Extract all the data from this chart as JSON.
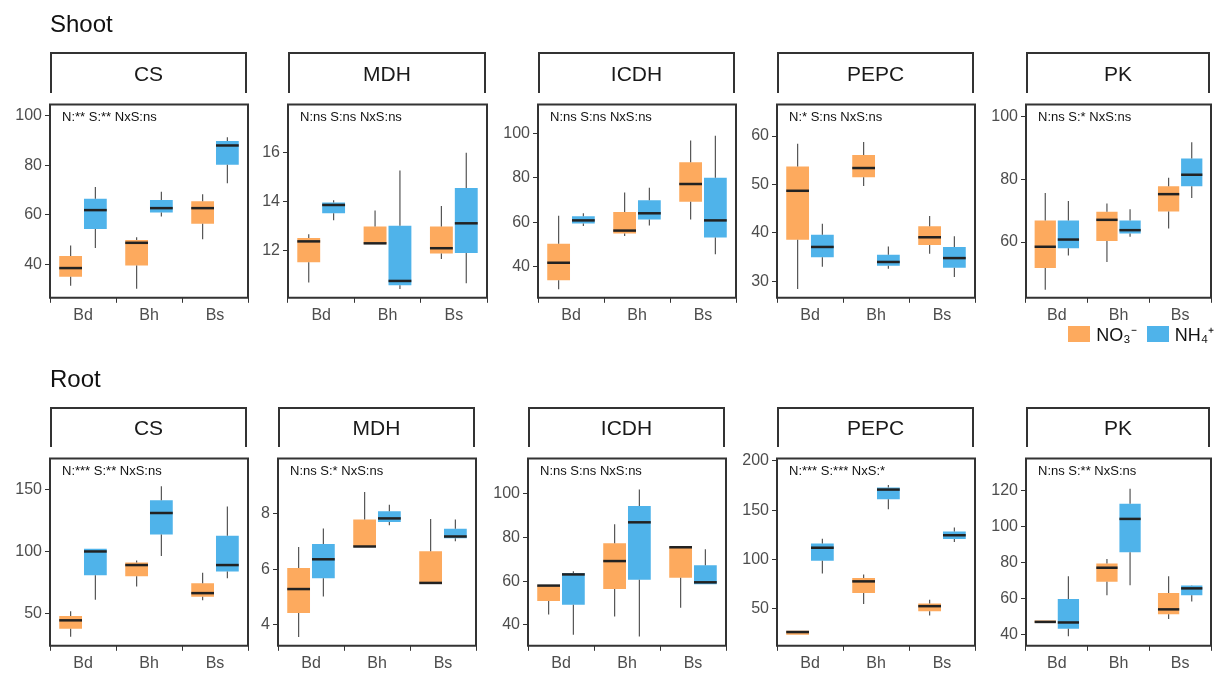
{
  "chart_data": [
    {
      "type": "box",
      "subtitle": "Shoot",
      "title": "CS",
      "annotations": [
        "N:** S:** NxS:ns"
      ],
      "categories": [
        "Bd",
        "Bh",
        "Bs"
      ],
      "ylim": [
        26.5,
        104.5
      ],
      "yticks": [
        40,
        60,
        80,
        100
      ],
      "series": [
        {
          "color": "#fdaa5e",
          "boxes": [
            {
              "low": 31.4,
              "q1": 35,
              "median": 38.5,
              "q3": 43.4,
              "high": 47.6
            },
            {
              "low": 30.2,
              "q1": 39.5,
              "median": 48.7,
              "q3": 49.8,
              "high": 50.9
            },
            {
              "low": 50.1,
              "q1": 56.4,
              "median": 62.7,
              "q3": 65.5,
              "high": 68.3
            }
          ]
        },
        {
          "color": "#4fb3ea",
          "boxes": [
            {
              "low": 46.6,
              "q1": 54.3,
              "median": 61.9,
              "q3": 66.5,
              "high": 71.2
            },
            {
              "low": 59.3,
              "q1": 60.9,
              "median": 62.7,
              "q3": 66,
              "high": 69.3
            },
            {
              "low": 72.7,
              "q1": 80.2,
              "median": 88,
              "q3": 89.8,
              "high": 91.3
            }
          ]
        }
      ]
    },
    {
      "type": "box",
      "title": "MDH",
      "annotations": [
        "N:ns S:ns NxS:ns"
      ],
      "categories": [
        "Bd",
        "Bh",
        "Bs"
      ],
      "ylim": [
        10.07,
        17.98
      ],
      "yticks": [
        12,
        14,
        16
      ],
      "series": [
        {
          "color": "#fdaa5e",
          "boxes": [
            {
              "low": 10.7,
              "q1": 11.53,
              "median": 12.38,
              "q3": 12.52,
              "high": 12.67
            },
            {
              "low": 12.28,
              "q1": 12.28,
              "median": 12.3,
              "q3": 12.99,
              "high": 13.64
            },
            {
              "low": 11.66,
              "q1": 11.88,
              "median": 12.1,
              "q3": 12.99,
              "high": 13.83
            }
          ]
        },
        {
          "color": "#4fb3ea",
          "boxes": [
            {
              "low": 13.24,
              "q1": 13.53,
              "median": 13.87,
              "q3": 13.97,
              "high": 14.06
            },
            {
              "low": 10.43,
              "q1": 10.58,
              "median": 10.76,
              "q3": 13.02,
              "high": 15.28
            },
            {
              "low": 10.67,
              "q1": 11.9,
              "median": 13.12,
              "q3": 14.57,
              "high": 16.01
            }
          ]
        }
      ]
    },
    {
      "type": "box",
      "title": "ICDH",
      "annotations": [
        "N:ns S:ns NxS:ns"
      ],
      "categories": [
        "Bd",
        "Bh",
        "Bs"
      ],
      "ylim": [
        25.9,
        113
      ],
      "yticks": [
        40,
        60,
        80,
        100
      ],
      "series": [
        {
          "color": "#fdaa5e",
          "boxes": [
            {
              "low": 29.8,
              "q1": 33.8,
              "median": 41.7,
              "q3": 50.3,
              "high": 62.9
            },
            {
              "low": 53.8,
              "q1": 54.9,
              "median": 56.2,
              "q3": 64.6,
              "high": 73.4
            },
            {
              "low": 61.2,
              "q1": 69.2,
              "median": 77.2,
              "q3": 87,
              "high": 96.8
            }
          ]
        },
        {
          "color": "#4fb3ea",
          "boxes": [
            {
              "low": 58.3,
              "q1": 59.4,
              "median": 60.8,
              "q3": 62.7,
              "high": 64
            },
            {
              "low": 58.5,
              "q1": 61.2,
              "median": 64,
              "q3": 69.9,
              "high": 75.5
            },
            {
              "low": 45.5,
              "q1": 53.1,
              "median": 60.8,
              "q3": 80,
              "high": 99
            }
          ]
        }
      ]
    },
    {
      "type": "box",
      "title": "PEPC",
      "annotations": [
        "N:* S:ns NxS:ns"
      ],
      "categories": [
        "Bd",
        "Bh",
        "Bs"
      ],
      "ylim": [
        26.6,
        66.5
      ],
      "yticks": [
        30,
        40,
        50,
        60
      ],
      "series": [
        {
          "color": "#fdaa5e",
          "boxes": [
            {
              "low": 28.4,
              "q1": 38.6,
              "median": 48.7,
              "q3": 53.7,
              "high": 58.4
            },
            {
              "low": 49.7,
              "q1": 51.5,
              "median": 53.4,
              "q3": 56.1,
              "high": 58.8
            },
            {
              "low": 35.7,
              "q1": 37.5,
              "median": 39.1,
              "q3": 41.4,
              "high": 43.5
            }
          ]
        },
        {
          "color": "#4fb3ea",
          "boxes": [
            {
              "low": 33,
              "q1": 35,
              "median": 37.1,
              "q3": 39.6,
              "high": 41.9
            },
            {
              "low": 32.6,
              "q1": 33.2,
              "median": 34,
              "q3": 35.5,
              "high": 37.2
            },
            {
              "low": 30.9,
              "q1": 32.8,
              "median": 34.8,
              "q3": 37.1,
              "high": 39.3
            }
          ]
        }
      ]
    },
    {
      "type": "box",
      "title": "PK",
      "annotations": [
        "N:ns S:* NxS:ns"
      ],
      "categories": [
        "Bd",
        "Bh",
        "Bs"
      ],
      "ylim": [
        42.2,
        103.9
      ],
      "yticks": [
        60,
        80,
        100
      ],
      "series": [
        {
          "color": "#fdaa5e",
          "boxes": [
            {
              "low": 44.8,
              "q1": 51.7,
              "median": 58.5,
              "q3": 66.9,
              "high": 75.7
            },
            {
              "low": 53.6,
              "q1": 60.3,
              "median": 67.1,
              "q3": 69.7,
              "high": 72.3
            },
            {
              "low": 64.3,
              "q1": 69.8,
              "median": 75.3,
              "q3": 77.8,
              "high": 80.5
            }
          ]
        },
        {
          "color": "#4fb3ea",
          "boxes": [
            {
              "low": 55.7,
              "q1": 58,
              "median": 60.8,
              "q3": 66.9,
              "high": 73.1
            },
            {
              "low": 61.7,
              "q1": 62.7,
              "median": 63.8,
              "q3": 66.9,
              "high": 70.5
            },
            {
              "low": 74.1,
              "q1": 77.8,
              "median": 81.5,
              "q3": 86.7,
              "high": 91.9
            }
          ]
        }
      ]
    },
    {
      "type": "box",
      "subtitle": "Root",
      "title": "CS",
      "annotations": [
        "N:*** S:** NxS:ns"
      ],
      "categories": [
        "Bd",
        "Bh",
        "Bs"
      ],
      "ylim": [
        23.9,
        175.3
      ],
      "yticks": [
        50,
        100,
        150
      ],
      "series": [
        {
          "color": "#fdaa5e",
          "boxes": [
            {
              "low": 31.2,
              "q1": 37.7,
              "median": 44.5,
              "q3": 48.1,
              "high": 51.9
            },
            {
              "low": 71.8,
              "q1": 80.2,
              "median": 89.2,
              "q3": 91.3,
              "high": 92.8
            },
            {
              "low": 60.8,
              "q1": 63.6,
              "median": 66.5,
              "q3": 74.5,
              "high": 82.9
            }
          ]
        },
        {
          "color": "#4fb3ea",
          "boxes": [
            {
              "low": 61.2,
              "q1": 81,
              "median": 100.2,
              "q3": 102.4,
              "high": 102.4
            },
            {
              "low": 96.6,
              "q1": 113.9,
              "median": 131.3,
              "q3": 141.6,
              "high": 152.9
            },
            {
              "low": 78.6,
              "q1": 83.9,
              "median": 89.2,
              "q3": 112.9,
              "high": 136.5
            }
          ]
        }
      ]
    },
    {
      "type": "box",
      "title": "MDH",
      "annotations": [
        "N:ns S:* NxS:ns"
      ],
      "categories": [
        "Bd",
        "Bh",
        "Bs"
      ],
      "ylim": [
        3.25,
        9.98
      ],
      "yticks": [
        4,
        6,
        8
      ],
      "series": [
        {
          "color": "#fdaa5e",
          "boxes": [
            {
              "low": 3.57,
              "q1": 4.43,
              "median": 5.29,
              "q3": 6.05,
              "high": 6.8
            },
            {
              "low": 6.82,
              "q1": 6.82,
              "median": 6.82,
              "q3": 7.79,
              "high": 8.78
            },
            {
              "low": 5.51,
              "q1": 5.51,
              "median": 5.51,
              "q3": 6.65,
              "high": 7.81
            }
          ]
        },
        {
          "color": "#4fb3ea",
          "boxes": [
            {
              "low": 5.02,
              "q1": 5.68,
              "median": 6.36,
              "q3": 6.91,
              "high": 7.47
            },
            {
              "low": 7.58,
              "q1": 7.7,
              "median": 7.83,
              "q3": 8.09,
              "high": 8.32
            },
            {
              "low": 7.01,
              "q1": 7.12,
              "median": 7.18,
              "q3": 7.46,
              "high": 7.79
            }
          ]
        }
      ]
    },
    {
      "type": "box",
      "title": "ICDH",
      "annotations": [
        "N:ns S:ns NxS:ns"
      ],
      "categories": [
        "Bd",
        "Bh",
        "Bs"
      ],
      "ylim": [
        30.5,
        116
      ],
      "yticks": [
        40,
        60,
        80,
        100
      ],
      "series": [
        {
          "color": "#fdaa5e",
          "boxes": [
            {
              "low": 44.8,
              "q1": 51,
              "median": 58,
              "q3": 58,
              "high": 58
            },
            {
              "low": 43.9,
              "q1": 56.4,
              "median": 69.2,
              "q3": 77.3,
              "high": 86
            },
            {
              "low": 47.9,
              "q1": 61.6,
              "median": 75.5,
              "q3": 75.5,
              "high": 75.5
            }
          ]
        },
        {
          "color": "#4fb3ea",
          "boxes": [
            {
              "low": 35.5,
              "q1": 49.3,
              "median": 63.1,
              "q3": 63.7,
              "high": 64.5
            },
            {
              "low": 34.8,
              "q1": 60.7,
              "median": 86.9,
              "q3": 94.3,
              "high": 101.9
            },
            {
              "low": 58.6,
              "q1": 58.6,
              "median": 59.5,
              "q3": 67.3,
              "high": 74.6
            }
          ]
        }
      ]
    },
    {
      "type": "box",
      "title": "PEPC",
      "annotations": [
        "N:*** S:*** NxS:*"
      ],
      "categories": [
        "Bd",
        "Bh",
        "Bs"
      ],
      "ylim": [
        12.1,
        202.4
      ],
      "yticks": [
        50,
        100,
        150,
        200
      ],
      "series": [
        {
          "color": "#fdaa5e",
          "boxes": [
            {
              "low": 23.3,
              "q1": 23.3,
              "median": 26.1,
              "q3": 27.3,
              "high": 27.3
            },
            {
              "low": 54.5,
              "q1": 65.8,
              "median": 77.6,
              "q3": 80.9,
              "high": 84.5
            },
            {
              "low": 43,
              "q1": 47.3,
              "median": 52.4,
              "q3": 55.2,
              "high": 59
            }
          ]
        },
        {
          "color": "#4fb3ea",
          "boxes": [
            {
              "low": 85.5,
              "q1": 98.5,
              "median": 111.8,
              "q3": 116.1,
              "high": 120.9
            },
            {
              "low": 150.9,
              "q1": 161,
              "median": 170.9,
              "q3": 173,
              "high": 175.5
            },
            {
              "low": 117.6,
              "q1": 120.6,
              "median": 124.5,
              "q3": 128.2,
              "high": 132.4
            }
          ]
        }
      ]
    },
    {
      "type": "box",
      "title": "PK",
      "annotations": [
        "N:ns S:** NxS:ns"
      ],
      "categories": [
        "Bd",
        "Bh",
        "Bs"
      ],
      "ylim": [
        33.7,
        138
      ],
      "yticks": [
        40,
        60,
        80,
        100,
        120
      ],
      "legend": "top right",
      "series": [
        {
          "name": "NO₃⁻",
          "color": "#fdaa5e",
          "boxes": [
            {
              "low": 46.5,
              "q1": 46.5,
              "median": 47,
              "q3": 47.8,
              "high": 47.8
            },
            {
              "low": 61.9,
              "q1": 69.4,
              "median": 77.2,
              "q3": 79.5,
              "high": 82
            },
            {
              "low": 48.6,
              "q1": 51.3,
              "median": 54,
              "q3": 63.1,
              "high": 72.4
            }
          ]
        },
        {
          "name": "NH₄⁺",
          "color": "#4fb3ea",
          "boxes": [
            {
              "low": 39,
              "q1": 43.2,
              "median": 46.7,
              "q3": 59.8,
              "high": 72.4
            },
            {
              "low": 67.4,
              "q1": 85.8,
              "median": 104.4,
              "q3": 112.8,
              "high": 121.2
            },
            {
              "low": 58.4,
              "q1": 61.9,
              "median": 65.7,
              "q3": 67.3,
              "high": 67.5
            }
          ]
        }
      ]
    }
  ]
}
